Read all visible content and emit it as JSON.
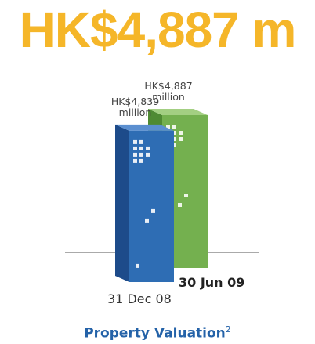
{
  "chart_data": {
    "type": "bar",
    "title": "HK$4,887 m",
    "categories": [
      "31 Dec 08",
      "30 Jun 09"
    ],
    "values": [
      4839,
      4887
    ],
    "value_labels": [
      "HK$4,839 million",
      "HK$4,887 million"
    ],
    "colors": [
      "#2e6db4",
      "#74b04f"
    ],
    "caption": "Property Valuation",
    "caption_note": "2"
  }
}
